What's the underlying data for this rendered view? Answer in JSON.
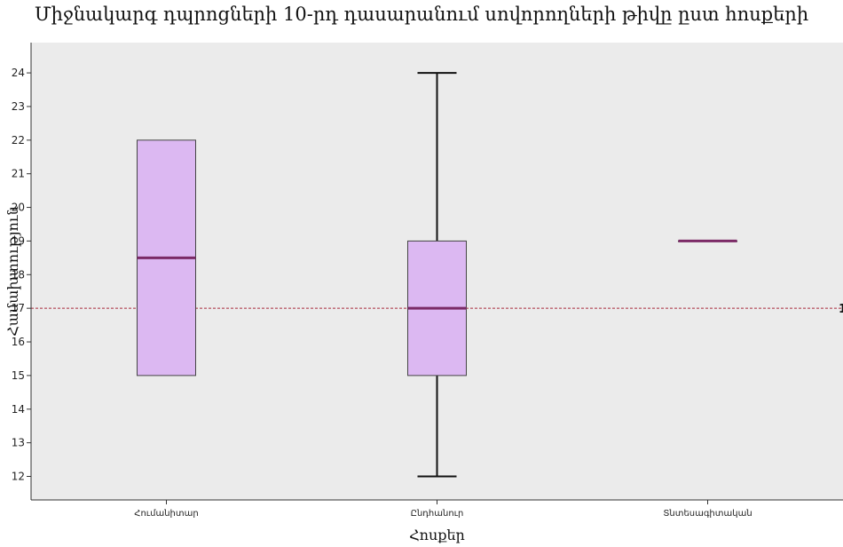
{
  "chart_data": {
    "type": "box",
    "title": "Միջնակարգ դպրոցների 10-րդ դասարանում սովորողների թիվը ըստ հոսքերի",
    "xlabel": "Հոսքեր",
    "ylabel": "Համախտություն",
    "categories": [
      "Հումանիտար",
      "Ընդհանուր",
      "Տնտեսագիտական"
    ],
    "boxes": [
      {
        "category": "Հումանիտար",
        "min": 15,
        "q1": 15,
        "median": 18.5,
        "q3": 22,
        "max": 22
      },
      {
        "category": "Ընդհանուր",
        "min": 12,
        "q1": 15,
        "median": 17,
        "q3": 19,
        "max": 24
      },
      {
        "category": "Տնտեսագիտական",
        "min": 19,
        "q1": 19,
        "median": 19,
        "q3": 19,
        "max": 19
      }
    ],
    "reference_line": {
      "value": 17,
      "label": "1"
    },
    "yticks": [
      12,
      13,
      14,
      15,
      16,
      17,
      18,
      19,
      20,
      21,
      22,
      23,
      24
    ],
    "ylim": [
      11.3,
      24.9
    ],
    "grid": false,
    "colors": {
      "plot_background": "#ebebeb",
      "box_fill": "#dcb8f2",
      "box_stroke": "#444444",
      "median": "#7b2a66",
      "reference_line": "#a82a3c"
    }
  }
}
